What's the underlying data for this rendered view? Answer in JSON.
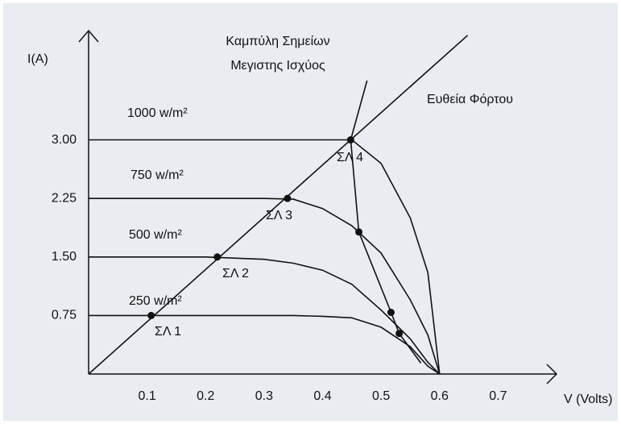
{
  "chart_data": {
    "type": "line",
    "x_label": "V (Volts)",
    "y_label": "I(A)",
    "xlim": [
      0,
      0.8
    ],
    "ylim": [
      0,
      4.4
    ],
    "xticks": [
      0.1,
      0.2,
      0.3,
      0.4,
      0.5,
      0.6,
      0.7
    ],
    "yticks": [
      0.75,
      {
        "value": 1.5,
        "label": "1.50"
      },
      2.25,
      {
        "value": 3,
        "label": "3.00"
      }
    ],
    "color": "#111111",
    "series": [
      {
        "name": "1000 w/m²",
        "x": [
          0,
          0.1,
          0.2,
          0.3,
          0.35,
          0.4,
          0.45,
          0.5,
          0.55,
          0.58,
          0.6
        ],
        "values": [
          3,
          3,
          3,
          3,
          3,
          3,
          3,
          2.7,
          2.0,
          1.3,
          0
        ]
      },
      {
        "name": "750 w/m²",
        "x": [
          0,
          0.1,
          0.2,
          0.3,
          0.35,
          0.4,
          0.45,
          0.5,
          0.55,
          0.58,
          0.6
        ],
        "values": [
          2.25,
          2.25,
          2.25,
          2.25,
          2.24,
          2.12,
          1.9,
          1.55,
          0.95,
          0.5,
          0
        ]
      },
      {
        "name": "500 w/m²",
        "x": [
          0,
          0.1,
          0.2,
          0.3,
          0.35,
          0.4,
          0.45,
          0.5,
          0.55,
          0.58,
          0.6
        ],
        "values": [
          1.5,
          1.5,
          1.5,
          1.47,
          1.42,
          1.33,
          1.15,
          0.82,
          0.45,
          0.15,
          0
        ]
      },
      {
        "name": "250 w/m²",
        "x": [
          0,
          0.1,
          0.2,
          0.3,
          0.35,
          0.4,
          0.45,
          0.5,
          0.55,
          0.58,
          0.6
        ],
        "values": [
          0.75,
          0.75,
          0.75,
          0.75,
          0.75,
          0.74,
          0.72,
          0.6,
          0.35,
          0.1,
          0
        ]
      },
      {
        "name": "Ευθεία Φόρτου",
        "x": [
          0,
          0.648
        ],
        "values": [
          0,
          4.34
        ]
      },
      {
        "name": [
          "Καμπύλη Σημείων",
          "Μεγιστης Ισχύος"
        ],
        "x": [
          0.476,
          0.448,
          0.462,
          0.517,
          0.531,
          0.568
        ],
        "values": [
          3.76,
          3.0,
          1.82,
          0.79,
          0.52,
          0.14
        ]
      }
    ],
    "points": {
      "x": [
        0.107,
        0.22,
        0.34,
        0.448,
        0.462,
        0.517,
        0.531
      ],
      "values": [
        0.75,
        1.5,
        2.25,
        3.0,
        1.82,
        0.79,
        0.52
      ]
    },
    "annotations": [
      "ΣΛ 1",
      "ΣΛ 2",
      "ΣΛ 3",
      "ΣΛ 4"
    ]
  }
}
